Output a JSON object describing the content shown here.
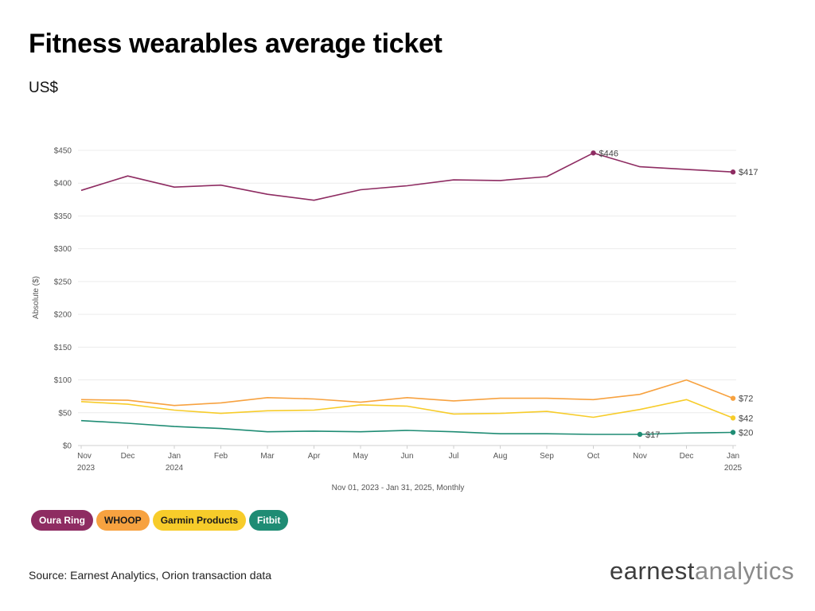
{
  "title": "Fitness wearables average ticket",
  "subtitle": "US$",
  "source": "Source: Earnest Analytics, Orion transaction data",
  "logo": {
    "part1": "earnest",
    "part2": "analytics"
  },
  "chart_data": {
    "type": "line",
    "ylabel": "Absolute ($)",
    "xlabel": "Nov 01, 2023 - Jan 31, 2025, Monthly",
    "ylim": [
      0,
      450
    ],
    "yticks": [
      {
        "value": 0,
        "label": "$0"
      },
      {
        "value": 50,
        "label": "$50"
      },
      {
        "value": 100,
        "label": "$100"
      },
      {
        "value": 150,
        "label": "$150"
      },
      {
        "value": 200,
        "label": "$200"
      },
      {
        "value": 250,
        "label": "$250"
      },
      {
        "value": 300,
        "label": "$300"
      },
      {
        "value": 350,
        "label": "$350"
      },
      {
        "value": 400,
        "label": "$400"
      },
      {
        "value": 450,
        "label": "$450"
      }
    ],
    "categories": [
      "Nov",
      "Dec",
      "Jan",
      "Feb",
      "Mar",
      "Apr",
      "May",
      "Jun",
      "Jul",
      "Aug",
      "Sep",
      "Oct",
      "Nov",
      "Dec",
      "Jan"
    ],
    "year_labels": [
      "2023",
      "",
      "2024",
      "",
      "",
      "",
      "",
      "",
      "",
      "",
      "",
      "",
      "",
      "",
      "2025"
    ],
    "grid": true,
    "legend_position": "bottom-left",
    "series": [
      {
        "name": "Oura Ring",
        "color": "#8e2c62",
        "text_color": "#ffffff",
        "values": [
          389,
          411,
          394,
          397,
          383,
          374,
          390,
          396,
          405,
          404,
          410,
          446,
          425,
          421,
          417
        ],
        "annotations": [
          {
            "index": 11,
            "label": "$446"
          },
          {
            "index": 14,
            "label": "$417"
          }
        ]
      },
      {
        "name": "WHOOP",
        "color": "#f7a240",
        "text_color": "#1a1a1a",
        "values": [
          70,
          69,
          61,
          65,
          73,
          71,
          66,
          73,
          68,
          72,
          72,
          70,
          78,
          100,
          72
        ],
        "annotations": [
          {
            "index": 14,
            "label": "$72"
          }
        ]
      },
      {
        "name": "Garmin Products",
        "color": "#f7cc2a",
        "text_color": "#1a1a1a",
        "values": [
          67,
          63,
          54,
          49,
          53,
          54,
          62,
          60,
          48,
          49,
          52,
          43,
          55,
          70,
          42
        ],
        "annotations": [
          {
            "index": 14,
            "label": "$42"
          }
        ]
      },
      {
        "name": "Fitbit",
        "color": "#1f8c74",
        "text_color": "#ffffff",
        "values": [
          38,
          34,
          29,
          26,
          21,
          22,
          21,
          23,
          21,
          18,
          18,
          17,
          17,
          19,
          20
        ],
        "annotations": [
          {
            "index": 12,
            "label": "$17"
          },
          {
            "index": 14,
            "label": "$20"
          }
        ]
      }
    ]
  }
}
